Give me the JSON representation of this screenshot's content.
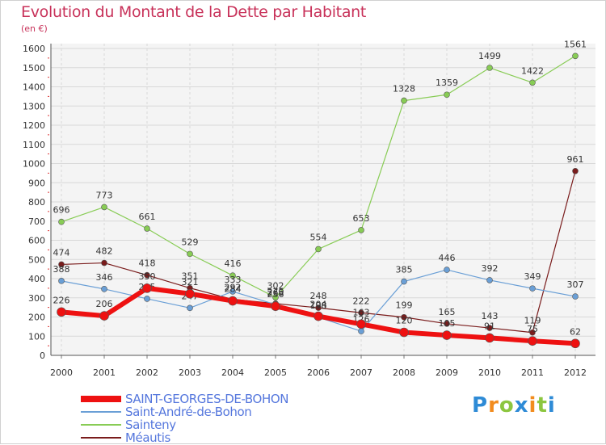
{
  "header": {
    "title": "Evolution du Montant de la Dette par Habitant",
    "subtitle": "(en €)"
  },
  "logo": {
    "letters": [
      "P",
      "r",
      "o",
      "x",
      "i",
      "t",
      "i"
    ],
    "colors": [
      "#2e8bd6",
      "#f28c1e",
      "#8cc63f",
      "#2e8bd6",
      "#f28c1e",
      "#8cc63f",
      "#2e8bd6"
    ]
  },
  "chart_data": {
    "type": "line",
    "x": [
      2000,
      2001,
      2002,
      2003,
      2004,
      2005,
      2006,
      2007,
      2008,
      2009,
      2010,
      2011,
      2012
    ],
    "ylim": [
      0,
      1600
    ],
    "yticks": [
      0,
      100,
      200,
      300,
      400,
      500,
      600,
      700,
      800,
      900,
      1000,
      1100,
      1200,
      1300,
      1400,
      1500,
      1600
    ],
    "grid": true,
    "legend_position": "bottom-left",
    "series": [
      {
        "name": "Méautis",
        "color": "#7a1c1c",
        "width": 1.2,
        "values": [
          474,
          482,
          418,
          351,
          292,
          270,
          248,
          222,
          199,
          165,
          143,
          119,
          961
        ],
        "labels": [
          "474",
          "482",
          "418",
          "351",
          "292",
          "270",
          "248",
          "222",
          "199",
          "165",
          "143",
          "119",
          "961"
        ]
      },
      {
        "name": "Sainteny",
        "color": "#88cc55",
        "width": 1.2,
        "values": [
          696,
          773,
          661,
          529,
          416,
          302,
          554,
          653,
          1328,
          1359,
          1499,
          1422,
          1561
        ],
        "labels": [
          "696",
          "773",
          "661",
          "529",
          "416",
          "302",
          "554",
          "653",
          "1328",
          "1359",
          "1499",
          "1422",
          "1561"
        ]
      },
      {
        "name": "Saint-André-de-Bohon",
        "color": "#6a9fd6",
        "width": 1.2,
        "values": [
          388,
          346,
          295,
          247,
          333,
          265,
          198,
          126,
          385,
          446,
          392,
          349,
          307
        ],
        "labels": [
          "388",
          "346",
          "295",
          "247",
          "333",
          "265",
          "198",
          "126",
          "385",
          "446",
          "392",
          "349",
          "307"
        ]
      },
      {
        "name": "SAINT-GEORGES-DE-BOHON",
        "color": "#ee1111",
        "width": 6,
        "values": [
          226,
          206,
          350,
          321,
          284,
          256,
          204,
          163,
          120,
          105,
          91,
          75,
          62
        ],
        "labels": [
          "226",
          "206",
          "350",
          "321",
          "284",
          "256",
          "204",
          "163",
          "120",
          "105",
          "91",
          "75",
          "62"
        ]
      }
    ]
  }
}
